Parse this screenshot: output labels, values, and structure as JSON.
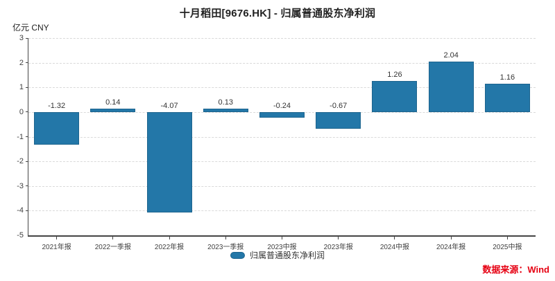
{
  "header": {
    "title": "十月稻田[9676.HK] - 归属普通股东净利润",
    "unit_label": "亿元 CNY"
  },
  "legend": {
    "label": "归属普通股东净利润"
  },
  "source": {
    "label": "数据来源：Wind"
  },
  "colors": {
    "bar": "#2377a8",
    "bar_border": "#1d648e",
    "grid": "#d9d9d9",
    "axis": "#444444",
    "text": "#333333",
    "source_text": "#e60012"
  },
  "chart_data": {
    "type": "bar",
    "title": "十月稻田[9676.HK] - 归属普通股东净利润",
    "xlabel": "",
    "ylabel": "亿元 CNY",
    "categories": [
      "2021年报",
      "2022一季报",
      "2022年报",
      "2023一季报",
      "2023中报",
      "2023年报",
      "2024中报",
      "2024年报",
      "2025中报"
    ],
    "values": [
      -1.32,
      0.14,
      -4.07,
      0.13,
      -0.24,
      -0.67,
      1.26,
      2.04,
      1.16
    ],
    "ylim": [
      -5,
      3
    ],
    "yticks": [
      3,
      2,
      1,
      0,
      -1,
      -2,
      -3,
      -4,
      -5
    ],
    "grid": true,
    "value_labels": true,
    "legend_entries": [
      "归属普通股东净利润"
    ],
    "legend_position": "bottom",
    "source": "数据来源：Wind"
  }
}
